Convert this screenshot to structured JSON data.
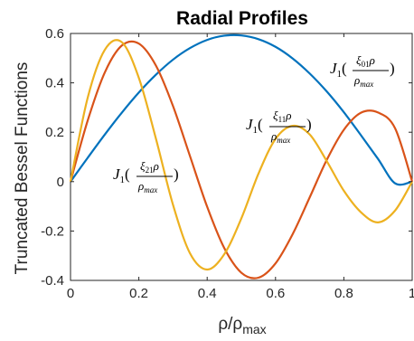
{
  "chart_data": {
    "type": "line",
    "title": "Radial Profiles",
    "xlabel": {
      "main": "ρ/ρ",
      "sub": "max"
    },
    "ylabel": "Truncated Bessel Functions",
    "xlim": [
      0,
      1
    ],
    "ylim": [
      -0.4,
      0.6
    ],
    "xticks": [
      0,
      0.2,
      0.4,
      0.6,
      0.8,
      1
    ],
    "xtick_labels": [
      "0",
      "0.2",
      "0.4",
      "0.6",
      "0.8",
      "1"
    ],
    "yticks": [
      -0.4,
      -0.2,
      0,
      0.2,
      0.4,
      0.6
    ],
    "ytick_labels": [
      "-0.4",
      "-0.2",
      "0",
      "0.2",
      "0.4",
      "0.6"
    ],
    "grid": false,
    "legend": "none",
    "x": [
      0,
      0.05,
      0.1,
      0.15,
      0.2,
      0.25,
      0.3,
      0.35,
      0.4,
      0.45,
      0.5,
      0.55,
      0.6,
      0.65,
      0.7,
      0.75,
      0.8,
      0.85,
      0.9,
      0.95,
      1
    ],
    "series": [
      {
        "color": "#0072BD",
        "values": [
          0,
          0.096,
          0.19,
          0.279,
          0.361,
          0.433,
          0.494,
          0.541,
          0.574,
          0.591,
          0.592,
          0.577,
          0.546,
          0.499,
          0.438,
          0.365,
          0.281,
          0.188,
          0.092,
          -0.007,
          0
        ]
      },
      {
        "color": "#D95319",
        "values": [
          0,
          0.246,
          0.441,
          0.551,
          0.559,
          0.47,
          0.306,
          0.102,
          -0.102,
          -0.269,
          -0.369,
          -0.389,
          -0.331,
          -0.213,
          -0.064,
          0.088,
          0.21,
          0.279,
          0.28,
          0.216,
          0
        ]
      },
      {
        "color": "#EDB120",
        "values": [
          0,
          0.338,
          0.533,
          0.565,
          0.42,
          0.174,
          -0.094,
          -0.291,
          -0.356,
          -0.294,
          -0.149,
          0.032,
          0.173,
          0.226,
          0.191,
          0.083,
          -0.037,
          -0.124,
          -0.165,
          -0.117,
          0
        ]
      }
    ],
    "annotations": [
      {
        "prefix": "J",
        "sub": "1",
        "open": "(",
        "num": "ξ",
        "num_sub": "01",
        "num_tail": "ρ",
        "den": "ρ",
        "den_sub": "max",
        "close": ")"
      },
      {
        "prefix": "J",
        "sub": "1",
        "open": "(",
        "num": "ξ",
        "num_sub": "11",
        "num_tail": "ρ",
        "den": "ρ",
        "den_sub": "max",
        "close": ")"
      },
      {
        "prefix": "J",
        "sub": "1",
        "open": "(",
        "num": "ξ",
        "num_sub": "21",
        "num_tail": "ρ",
        "den": "ρ",
        "den_sub": "max",
        "close": ")"
      }
    ]
  }
}
